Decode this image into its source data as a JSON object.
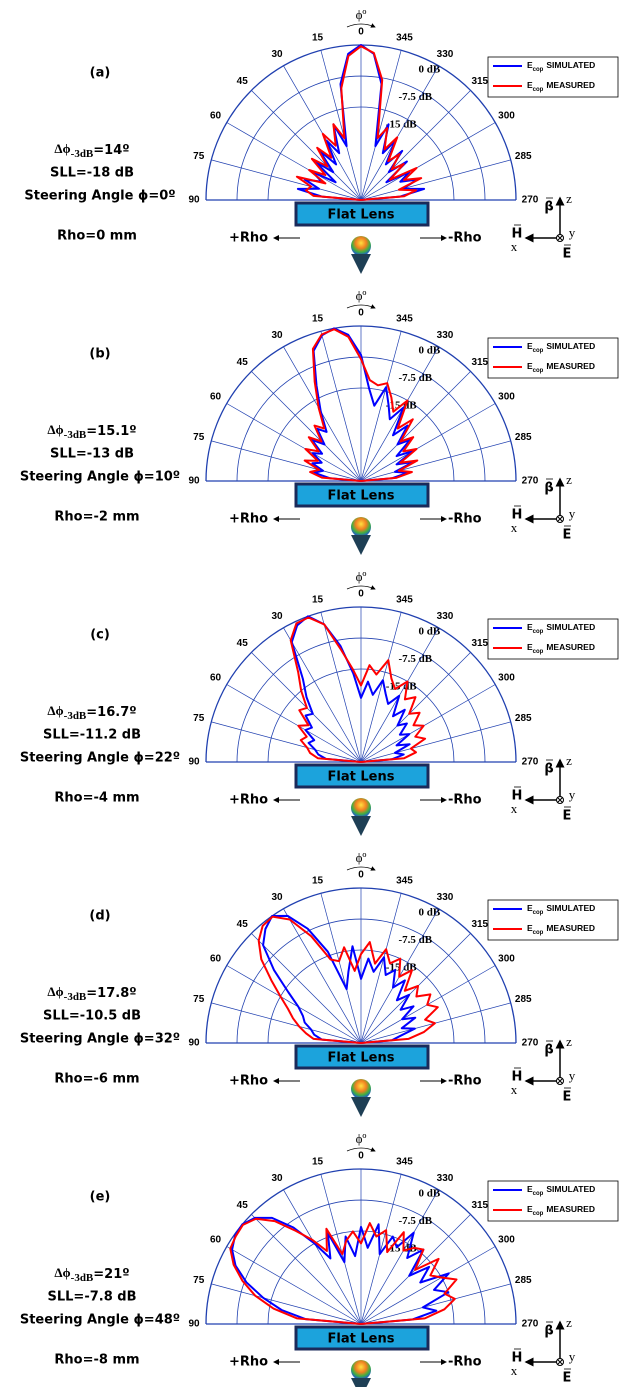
{
  "chart_data": [
    {
      "type": "polar",
      "panel_label": "(a)",
      "beamwidth": {
        "symbol": "Δϕ",
        "sub": "-3dB",
        "value": "=14º"
      },
      "sll": "SLL=-18 dB",
      "steering": "Steering Angle ϕ=0º",
      "rho": "Rho=0 mm",
      "angle_title": "ϕº",
      "lens": "Flat Lens",
      "plus_rho": "+Rho",
      "minus_rho": "-Rho",
      "legend_symbol": "E",
      "legend_sub": "cop",
      "coord": {
        "beta": "β",
        "z": "z",
        "h": "H",
        "y": "y",
        "x": "x",
        "e": "E"
      },
      "rlim": [
        -37.5,
        0
      ],
      "rticks": [
        {
          "value": 0,
          "label": "0 dB"
        },
        {
          "value": -7.5,
          "label": "-7.5 dB"
        },
        {
          "value": -15,
          "label": "-15 dB"
        }
      ],
      "thetaticks": [
        90,
        75,
        60,
        45,
        30,
        15,
        0,
        345,
        330,
        315,
        300,
        285,
        270
      ],
      "x": [
        90,
        85,
        80,
        75,
        70,
        65,
        60,
        55,
        50,
        45,
        40,
        35,
        30,
        25,
        20,
        15,
        10,
        5,
        0,
        355,
        350,
        345,
        340,
        335,
        330,
        325,
        320,
        315,
        310,
        305,
        300,
        295,
        290,
        285,
        280,
        275,
        270
      ],
      "series": [
        {
          "name": "SIMULATED",
          "color": "#0000ff",
          "values": [
            -37.5,
            -28,
            -22,
            -27,
            -23,
            -27,
            -24,
            -30,
            -23,
            -28,
            -22,
            -27,
            -21,
            -25,
            -18,
            -24,
            -9,
            -2,
            0,
            -2,
            -9,
            -24,
            -18,
            -25,
            -21,
            -27,
            -22,
            -28,
            -23,
            -30,
            -24,
            -27,
            -23,
            -27,
            -22,
            -28,
            -37.5
          ]
        },
        {
          "name": "MEASURED",
          "color": "#ff0000",
          "values": [
            -37.5,
            -26,
            -24,
            -25,
            -21,
            -28,
            -23,
            -27,
            -22,
            -26,
            -21,
            -25,
            -19,
            -23,
            -18,
            -22,
            -10,
            -2.5,
            -0.3,
            -1.8,
            -8,
            -22,
            -19,
            -24,
            -20,
            -26,
            -23,
            -27,
            -24,
            -29,
            -22,
            -26,
            -22,
            -28,
            -24,
            -27,
            -37.5
          ]
        }
      ]
    },
    {
      "type": "polar",
      "panel_label": "(b)",
      "beamwidth": {
        "symbol": "Δϕ",
        "sub": "-3dB",
        "value": "=15.1º"
      },
      "sll": "SLL=-13 dB",
      "steering": "Steering Angle ϕ=10º",
      "rho": "Rho=-2 mm",
      "angle_title": "ϕº",
      "lens": "Flat Lens",
      "plus_rho": "+Rho",
      "minus_rho": "-Rho",
      "legend_symbol": "E",
      "legend_sub": "cop",
      "coord": {
        "beta": "β",
        "z": "z",
        "h": "H",
        "y": "y",
        "x": "x",
        "e": "E"
      },
      "rlim": [
        -37.5,
        0
      ],
      "rticks": [
        {
          "value": 0,
          "label": "0 dB"
        },
        {
          "value": -7.5,
          "label": "-7.5 dB"
        },
        {
          "value": -15,
          "label": "-15 dB"
        }
      ],
      "thetaticks": [
        90,
        75,
        60,
        45,
        30,
        15,
        0,
        345,
        330,
        315,
        300,
        285,
        270
      ],
      "x": [
        90,
        85,
        80,
        75,
        70,
        65,
        60,
        55,
        50,
        45,
        40,
        35,
        30,
        25,
        20,
        15,
        10,
        5,
        0,
        355,
        350,
        345,
        340,
        335,
        330,
        325,
        320,
        315,
        310,
        305,
        300,
        295,
        290,
        285,
        280,
        275,
        270
      ],
      "series": [
        {
          "name": "SIMULATED",
          "color": "#0000ff",
          "values": [
            -37.5,
            -30,
            -26,
            -28,
            -25,
            -27,
            -24,
            -26,
            -22,
            -25,
            -21,
            -23,
            -18,
            -12,
            -4,
            -1,
            0,
            -2,
            -7,
            -15,
            -19,
            -14,
            -18,
            -21,
            -17,
            -24,
            -20,
            -25,
            -22,
            -27,
            -23,
            -28,
            -24,
            -29,
            -26,
            -30,
            -37.5
          ]
        },
        {
          "name": "MEASURED",
          "color": "#ff0000",
          "values": [
            -37.5,
            -28,
            -25,
            -27,
            -23,
            -26,
            -22,
            -25,
            -21,
            -24,
            -20,
            -22,
            -17,
            -11,
            -3.5,
            -0.8,
            -0.2,
            -2.5,
            -8,
            -13,
            -14,
            -13,
            -16,
            -19,
            -15,
            -22,
            -18,
            -24,
            -21,
            -25,
            -22,
            -27,
            -23,
            -28,
            -25,
            -29,
            -37.5
          ]
        }
      ]
    },
    {
      "type": "polar",
      "panel_label": "(c)",
      "beamwidth": {
        "symbol": "Δϕ",
        "sub": "-3dB",
        "value": "=16.7º"
      },
      "sll": "SLL=-11.2 dB",
      "steering": "Steering Angle ϕ=22º",
      "rho": "Rho=-4 mm",
      "angle_title": "ϕº",
      "lens": "Flat Lens",
      "plus_rho": "+Rho",
      "minus_rho": "-Rho",
      "legend_symbol": "E",
      "legend_sub": "cop",
      "coord": {
        "beta": "β",
        "z": "z",
        "h": "H",
        "y": "y",
        "x": "x",
        "e": "E"
      },
      "rlim": [
        -37.5,
        0
      ],
      "rticks": [
        {
          "value": 0,
          "label": "0 dB"
        },
        {
          "value": -7.5,
          "label": "-7.5 dB"
        },
        {
          "value": -15,
          "label": "-15 dB"
        }
      ],
      "thetaticks": [
        90,
        75,
        60,
        45,
        30,
        15,
        0,
        345,
        330,
        315,
        300,
        285,
        270
      ],
      "x": [
        90,
        85,
        80,
        75,
        70,
        65,
        60,
        55,
        50,
        45,
        40,
        35,
        30,
        25,
        20,
        15,
        10,
        5,
        0,
        355,
        350,
        345,
        340,
        335,
        330,
        325,
        320,
        315,
        310,
        305,
        300,
        295,
        290,
        285,
        280,
        275,
        270
      ],
      "series": [
        {
          "name": "SIMULATED",
          "color": "#0000ff",
          "values": [
            -37.5,
            -29,
            -27,
            -26,
            -24,
            -25,
            -22,
            -23,
            -20,
            -21,
            -17,
            -13,
            -4,
            -1,
            0,
            -3,
            -9,
            -16,
            -22,
            -18,
            -21,
            -17,
            -20,
            -22,
            -19,
            -24,
            -21,
            -25,
            -23,
            -26,
            -24,
            -28,
            -25,
            -29,
            -27,
            -30,
            -37.5
          ]
        },
        {
          "name": "MEASURED",
          "color": "#ff0000",
          "values": [
            -37.5,
            -27,
            -25,
            -24,
            -22,
            -23,
            -20,
            -22,
            -18,
            -19,
            -15,
            -11,
            -3.5,
            -0.5,
            -0.3,
            -3,
            -10,
            -15,
            -19,
            -14,
            -16,
            -12,
            -16,
            -18,
            -15,
            -19,
            -17,
            -21,
            -19,
            -22,
            -20,
            -23,
            -21,
            -25,
            -24,
            -27,
            -37.5
          ]
        }
      ]
    },
    {
      "type": "polar",
      "panel_label": "(d)",
      "beamwidth": {
        "symbol": "Δϕ",
        "sub": "-3dB",
        "value": "=17.8º"
      },
      "sll": "SLL=-10.5 dB",
      "steering": "Steering Angle ϕ=32º",
      "rho": "Rho=-6 mm",
      "angle_title": "ϕº",
      "lens": "Flat Lens",
      "plus_rho": "+Rho",
      "minus_rho": "-Rho",
      "legend_symbol": "E",
      "legend_sub": "cop",
      "coord": {
        "beta": "β",
        "z": "z",
        "h": "H",
        "y": "y",
        "x": "x",
        "e": "E"
      },
      "rlim": [
        -37.5,
        0
      ],
      "rticks": [
        {
          "value": 0,
          "label": "0 dB"
        },
        {
          "value": -7.5,
          "label": "-7.5 dB"
        },
        {
          "value": -15,
          "label": "-15 dB"
        }
      ],
      "thetaticks": [
        90,
        75,
        60,
        45,
        30,
        15,
        0,
        345,
        330,
        315,
        300,
        285,
        270
      ],
      "x": [
        90,
        85,
        80,
        75,
        70,
        65,
        60,
        55,
        50,
        45,
        40,
        35,
        30,
        25,
        20,
        15,
        10,
        5,
        0,
        355,
        350,
        345,
        340,
        335,
        330,
        325,
        320,
        315,
        310,
        305,
        300,
        295,
        290,
        285,
        280,
        275,
        270
      ],
      "series": [
        {
          "name": "SIMULATED",
          "color": "#0000ff",
          "values": [
            -37.5,
            -28,
            -26,
            -25,
            -23,
            -22,
            -20,
            -16,
            -10,
            -4,
            -1.5,
            0,
            -2,
            -7,
            -14,
            -24,
            -20,
            -14,
            -22,
            -17,
            -20,
            -16,
            -20,
            -18,
            -22,
            -19,
            -24,
            -21,
            -25,
            -22,
            -26,
            -23,
            -27,
            -24,
            -28,
            -30,
            -37.5
          ]
        },
        {
          "name": "MEASURED",
          "color": "#ff0000",
          "values": [
            -37.5,
            -26,
            -24,
            -22,
            -20,
            -18,
            -15,
            -11,
            -6,
            -2.5,
            -0.5,
            -0.2,
            -3,
            -9,
            -16,
            -17,
            -14,
            -20,
            -16,
            -13,
            -18,
            -14,
            -17,
            -15,
            -19,
            -16,
            -21,
            -18,
            -20,
            -17,
            -19,
            -17,
            -21,
            -19,
            -22,
            -26,
            -37.5
          ]
        }
      ]
    },
    {
      "type": "polar",
      "panel_label": "(e)",
      "beamwidth": {
        "symbol": "Δϕ",
        "sub": "-3dB",
        "value": "=21º"
      },
      "sll": "SLL=-7.8 dB",
      "steering": "Steering Angle ϕ=48º",
      "rho": "Rho=-8 mm",
      "angle_title": "ϕº",
      "lens": "Flat Lens",
      "plus_rho": "+Rho",
      "minus_rho": "-Rho",
      "legend_symbol": "E",
      "legend_sub": "cop",
      "coord": {
        "beta": "β",
        "z": "z",
        "h": "H",
        "y": "y",
        "x": "x",
        "e": "E"
      },
      "rlim": [
        -37.5,
        0
      ],
      "rticks": [
        {
          "value": 0,
          "label": "0 dB"
        },
        {
          "value": -7.5,
          "label": "-7.5 dB"
        },
        {
          "value": -15,
          "label": "-15 dB"
        }
      ],
      "thetaticks": [
        90,
        75,
        60,
        45,
        30,
        15,
        0,
        345,
        330,
        315,
        300,
        285,
        270
      ],
      "x": [
        90,
        85,
        80,
        75,
        70,
        65,
        60,
        55,
        50,
        45,
        40,
        35,
        30,
        25,
        20,
        15,
        10,
        5,
        0,
        355,
        350,
        345,
        340,
        335,
        330,
        325,
        320,
        315,
        310,
        305,
        300,
        295,
        290,
        285,
        280,
        275,
        270
      ],
      "series": [
        {
          "name": "SIMULATED",
          "color": "#0000ff",
          "values": [
            -37.5,
            -24,
            -18,
            -13,
            -8,
            -4,
            -1.5,
            -0.3,
            0,
            -1.2,
            -4,
            -9,
            -15,
            -20,
            -14,
            -22,
            -16,
            -21,
            -14,
            -19,
            -13,
            -20,
            -15,
            -17,
            -12,
            -18,
            -14,
            -21,
            -16,
            -20,
            -13,
            -18,
            -15,
            -22,
            -19,
            -25,
            -37.5
          ]
        },
        {
          "name": "MEASURED",
          "color": "#ff0000",
          "values": [
            -37.5,
            -22,
            -16,
            -11,
            -7,
            -3.5,
            -1,
            -0.5,
            -0.2,
            -1.5,
            -5,
            -10,
            -14,
            -18,
            -13,
            -20,
            -17,
            -15,
            -18,
            -13,
            -16,
            -14,
            -19,
            -13,
            -17,
            -15,
            -14,
            -19,
            -13,
            -17,
            -15,
            -12,
            -16,
            -14,
            -17,
            -22,
            -37.5
          ]
        }
      ]
    }
  ]
}
